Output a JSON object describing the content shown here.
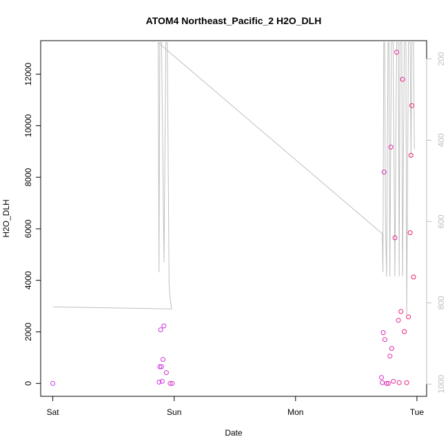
{
  "chart_data": {
    "type": "scatter",
    "title": "ATOM4 Northeast_Pacific_2 H2O_DLH",
    "xlabel": "Date",
    "ylabel": "H2O_DLH",
    "x_ticks": [
      {
        "value": 0,
        "label": "Sat"
      },
      {
        "value": 1,
        "label": "Sun"
      },
      {
        "value": 2,
        "label": "Mon"
      },
      {
        "value": 3,
        "label": "Tue"
      }
    ],
    "y_ticks": [
      0,
      2000,
      4000,
      6000,
      8000,
      10000,
      12000
    ],
    "y_right_ticks": [
      200,
      400,
      600,
      800,
      1000
    ],
    "xlim": [
      -0.1,
      3.08
    ],
    "ylim": [
      -500,
      13300
    ],
    "y_right_lim": [
      1030,
      155
    ],
    "y_right_reversed": true,
    "grid": false,
    "colors": {
      "line": "#bebebe",
      "point_start": "#cc33ee",
      "point_end": "#ee1a66",
      "axis": "#000000",
      "right_axis": "#bebebe"
    },
    "series": [
      {
        "role": "points",
        "axis": "left",
        "points": [
          [
            0.0,
            0
          ],
          [
            0.876,
            50
          ],
          [
            0.882,
            650
          ],
          [
            0.889,
            2080
          ],
          [
            0.895,
            650
          ],
          [
            0.901,
            80
          ],
          [
            0.908,
            930
          ],
          [
            0.915,
            2230
          ],
          [
            0.936,
            420
          ],
          [
            0.967,
            0
          ],
          [
            0.984,
            0
          ],
          [
            2.708,
            230
          ],
          [
            2.715,
            30
          ],
          [
            2.722,
            1970
          ],
          [
            2.729,
            8200
          ],
          [
            2.736,
            1700
          ],
          [
            2.75,
            0
          ],
          [
            2.764,
            0
          ],
          [
            2.778,
            1060
          ],
          [
            2.785,
            9170
          ],
          [
            2.792,
            1360
          ],
          [
            2.806,
            80
          ],
          [
            2.819,
            5650
          ],
          [
            2.833,
            12850
          ],
          [
            2.847,
            2450
          ],
          [
            2.854,
            30
          ],
          [
            2.868,
            2790
          ],
          [
            2.882,
            11800
          ],
          [
            2.896,
            2010
          ],
          [
            2.916,
            30
          ],
          [
            2.93,
            2580
          ],
          [
            2.944,
            5850
          ],
          [
            2.951,
            8850
          ],
          [
            2.958,
            10780
          ],
          [
            2.972,
            4130
          ]
        ]
      },
      {
        "role": "line",
        "axis": "right",
        "points": [
          [
            0.0,
            810
          ],
          [
            0.979,
            815
          ],
          [
            0.965,
            785
          ],
          [
            0.958,
            750
          ],
          [
            0.944,
            160
          ],
          [
            0.931,
            160
          ],
          [
            0.916,
            700
          ],
          [
            0.896,
            160
          ],
          [
            0.882,
            160
          ],
          [
            0.875,
            725
          ],
          [
            0.869,
            160
          ],
          [
            2.715,
            630
          ],
          [
            2.72,
            725
          ],
          [
            2.727,
            160
          ],
          [
            2.734,
            160
          ],
          [
            2.741,
            595
          ],
          [
            2.75,
            735
          ],
          [
            2.762,
            160
          ],
          [
            2.77,
            160
          ],
          [
            2.777,
            735
          ],
          [
            2.79,
            160
          ],
          [
            2.804,
            160
          ],
          [
            2.818,
            735
          ],
          [
            2.833,
            160
          ],
          [
            2.847,
            160
          ],
          [
            2.854,
            735
          ],
          [
            2.861,
            160
          ],
          [
            2.875,
            160
          ],
          [
            2.882,
            735
          ],
          [
            2.896,
            160
          ],
          [
            2.909,
            160
          ],
          [
            2.916,
            830
          ],
          [
            2.93,
            160
          ],
          [
            2.944,
            160
          ],
          [
            2.951,
            440
          ],
          [
            2.958,
            160
          ],
          [
            2.972,
            160
          ],
          [
            2.979,
            422
          ]
        ]
      }
    ]
  }
}
